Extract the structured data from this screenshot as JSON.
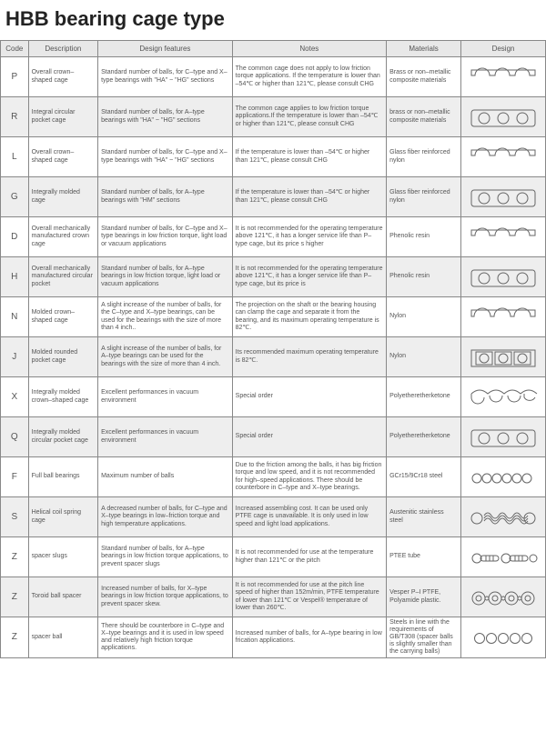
{
  "title": "HBB bearing cage type",
  "headers": [
    "Code",
    "Description",
    "Design features",
    "Notes",
    "Materials",
    "Design"
  ],
  "rows": [
    {
      "code": "P",
      "desc": "Overall crown–shaped cage",
      "feat": "Standard number of balls, for C–type and X–type bearings with \"HA\" ~ \"HG\" sections",
      "notes": "The common cage does not apply to low friction torque applications. If the temperature is lower than –54℃ or higher than 121℃, please consult CHG",
      "mat": "Brass or non–metallic composite materials",
      "shape": "crown"
    },
    {
      "code": "R",
      "desc": "Integral circular pocket cage",
      "feat": "Standard number of balls, for A–type bearings with \"HA\" ~ \"HG\" sections",
      "notes": "The common cage applies to low friction torque applications.If the temperature is lower than –54℃ or higher than 121℃, please consult CHG",
      "mat": "brass or non–metallic composite materials",
      "shape": "ring3"
    },
    {
      "code": "L",
      "desc": "Overall crown–shaped cage",
      "feat": "Standard number of balls, for C–type and X–type bearings with \"HA\" ~ \"HG\" sections",
      "notes": "If the temperature is lower than –54℃ or higher than 121℃, please consult CHG",
      "mat": "Glass fiber reinforced nylon",
      "shape": "crown"
    },
    {
      "code": "G",
      "desc": "Integrally molded cage",
      "feat": "Standard number of balls, for A–type bearings with \"HM\" sections",
      "notes": "If the temperature is lower than –54℃ or higher than 121℃, please consult CHG",
      "mat": "Glass fiber reinforced nylon",
      "shape": "ring3"
    },
    {
      "code": "D",
      "desc": "Overall mechanically manufactured crown cage",
      "feat": "Standard number of balls, for C–type and X–type bearings in low friction torque, light load or vacuum applications",
      "notes": "It is not recommended for the operating temperature above 121℃, it has a longer service life than P–type cage, but its price s higher",
      "mat": "Phenolic resin",
      "shape": "crown"
    },
    {
      "code": "H",
      "desc": "Overall mechanically manufactured circular pocket",
      "feat": "Standard number of balls, for A–type bearings in low friction torque, light load or vacuum applications",
      "notes": "It is not recommended for the operating temperature above 121℃, it has a longer service life than P–type cage, but its price is",
      "mat": "Phenolic resin",
      "shape": "ring3"
    },
    {
      "code": "N",
      "desc": "Molded crown–shaped cage",
      "feat": "A slight increase of the number of balls, for the C–type and X–type bearings, can be used for the bearings with the size of more than 4 inch..",
      "notes": "The projection on the shaft or the bearing housing can clamp the cage and separate it from the bearing, and its maximum operating temperature is 82℃.",
      "mat": "Nylon",
      "shape": "crownN"
    },
    {
      "code": "J",
      "desc": "Molded rounded pocket cage",
      "feat": "A slight increase of the number of balls, for A–type bearings can be used for the bearings with the size of more than 4 inch.",
      "notes": "Its recommended maximum operating temperature is 82℃.",
      "mat": "Nylon",
      "shape": "square3"
    },
    {
      "code": "X",
      "desc": "Integrally molded crown–shaped cage",
      "feat": "Excellent performances in vacuum environment",
      "notes": "Special order",
      "mat": "Polyetheretherketone",
      "shape": "crownwave"
    },
    {
      "code": "Q",
      "desc": "Integrally molded circular pocket cage",
      "feat": "Excellent performances in vacuum environment",
      "notes": "Special order",
      "mat": "Polyetheretherketone",
      "shape": "ring3"
    },
    {
      "code": "F",
      "desc": "Full ball bearings",
      "feat": "Maximum number of balls",
      "notes": "Due to the friction among the balls, it has big friction torque and low speed, and it is not recommended for high–speed applications. There should be counterbore in C–type and X–type bearings.",
      "mat": "GCr15/9Cr18 steel",
      "shape": "balls6"
    },
    {
      "code": "S",
      "desc": "Helical coil spring cage",
      "feat": "A decreased number of balls, for C–type and X–type bearings in low–friction torque and high temperature applications.",
      "notes": "Increased assembling cost. It can be used only PTFE cage is unavailable. It is only used in low speed and light load applications.",
      "mat": "Austenitic stainless steel",
      "shape": "spring"
    },
    {
      "code": "Z",
      "desc": "spacer slugs",
      "feat": "Standard number of balls, for A–type bearings in low friction torque applications, to prevent spacer slugs",
      "notes": "It is not recommended for use at the temperature higher than 121℃ or the pitch",
      "mat": "PTEE tube",
      "shape": "slugs"
    },
    {
      "code": "Z",
      "desc": "Toroid ball spacer",
      "feat": "Increased number of balls, for X–type bearings in low friction torque applications, to prevent spacer skew.",
      "notes": "It is not recommended for use at the pitch line speed of higher than 152m/min, PTFE temperature of lower than 121℃ or Vespel® temperature of lower than 260℃.",
      "mat": "Vesper P–I PTFE, Polyamide plastic.",
      "shape": "toroid"
    },
    {
      "code": "Z",
      "desc": "spacer ball",
      "feat": "There should be counterbore in C–type and X–type bearings and it is used in low speed and relatively high friction torque applications.",
      "notes": "Increased number of balls, for A–type bearing in low frication applications.",
      "mat": "Steels in line with the requirements of GB/T308 (spacer balls is slightly smaller than the carrying balls)",
      "shape": "balls5"
    }
  ],
  "svg_stroke": "#666",
  "svg_fill": "none"
}
